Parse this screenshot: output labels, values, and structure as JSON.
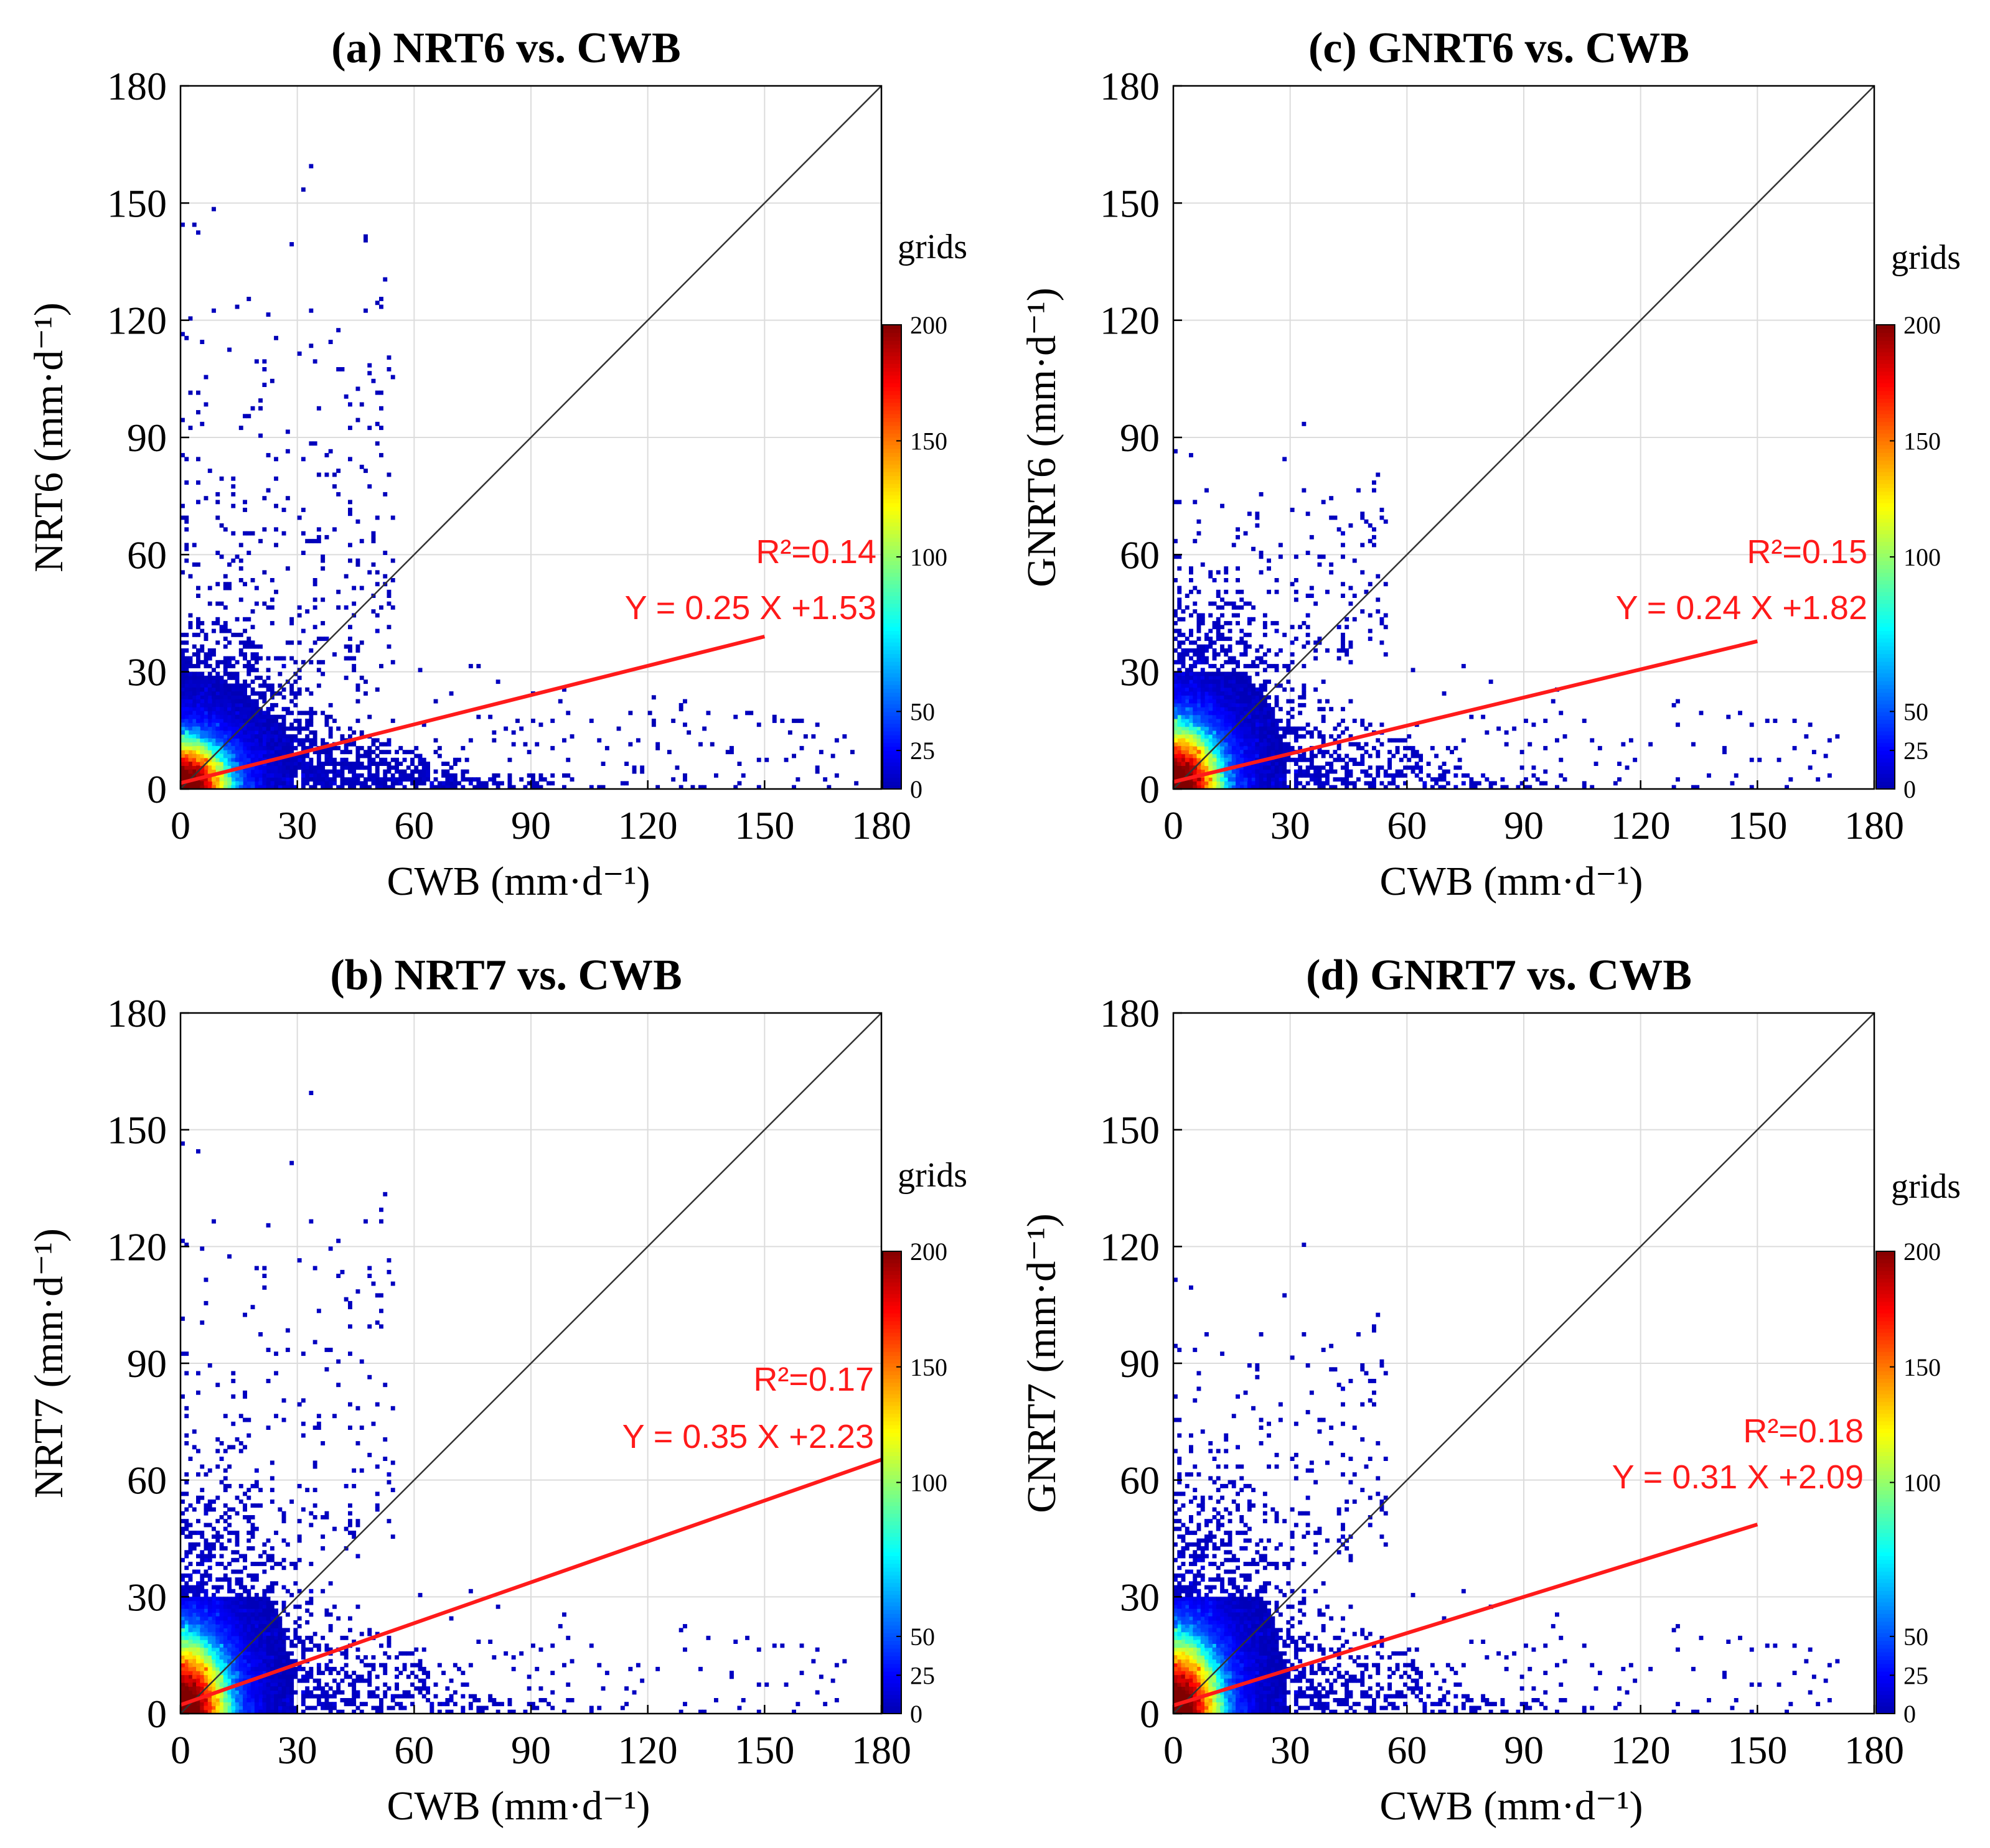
{
  "chart_data": [
    {
      "type": "heatmap",
      "panel": "a",
      "title": "(a) NRT6 vs. CWB",
      "xlabel": "CWB (mm·d⁻¹)",
      "ylabel": "NRT6 (mm·d⁻¹)",
      "xlim": [
        0,
        180
      ],
      "ylim": [
        0,
        180
      ],
      "xticks": [
        0,
        30,
        60,
        90,
        120,
        150,
        180
      ],
      "yticks": [
        0,
        30,
        60,
        90,
        120,
        150,
        180
      ],
      "grid": true,
      "one_to_one_line": true,
      "fit": {
        "slope": 0.25,
        "intercept": 1.53,
        "x_range": [
          0,
          150
        ]
      },
      "r2_label": "R²=0.14",
      "equation_label": "Y = 0.25 X +1.53",
      "colorbar": {
        "title": "grids",
        "ticks": [
          0,
          25,
          50,
          100,
          150,
          200
        ],
        "range": [
          0,
          200
        ]
      },
      "spread": {
        "ymax_core": 35,
        "ymax_scatter": 172,
        "xmax_scatter": 178
      }
    },
    {
      "type": "heatmap",
      "panel": "c",
      "title": "(c) GNRT6 vs. CWB",
      "xlabel": "CWB (mm·d⁻¹)",
      "ylabel": "GNRT6 (mm·d⁻¹)",
      "xlim": [
        0,
        180
      ],
      "ylim": [
        0,
        180
      ],
      "xticks": [
        0,
        30,
        60,
        90,
        120,
        150,
        180
      ],
      "yticks": [
        0,
        30,
        60,
        90,
        120,
        150,
        180
      ],
      "grid": true,
      "one_to_one_line": true,
      "fit": {
        "slope": 0.24,
        "intercept": 1.82,
        "x_range": [
          0,
          150
        ]
      },
      "r2_label": "R²=0.15",
      "equation_label": "Y = 0.24 X +1.82",
      "colorbar": {
        "title": "grids",
        "ticks": [
          0,
          25,
          50,
          100,
          150,
          200
        ],
        "range": [
          0,
          200
        ]
      },
      "spread": {
        "ymax_core": 45,
        "ymax_scatter": 108,
        "xmax_scatter": 178
      }
    },
    {
      "type": "heatmap",
      "panel": "b",
      "title": "(b) NRT7 vs. CWB",
      "xlabel": "CWB (mm·d⁻¹)",
      "ylabel": "NRT7 (mm·d⁻¹)",
      "xlim": [
        0,
        180
      ],
      "ylim": [
        0,
        180
      ],
      "xticks": [
        0,
        30,
        60,
        90,
        120,
        150,
        180
      ],
      "yticks": [
        0,
        30,
        60,
        90,
        120,
        150,
        180
      ],
      "grid": true,
      "one_to_one_line": true,
      "fit": {
        "slope": 0.35,
        "intercept": 2.23,
        "x_range": [
          0,
          180
        ]
      },
      "r2_label": "R²=0.17",
      "equation_label": "Y = 0.35 X +2.23",
      "colorbar": {
        "title": "grids",
        "ticks": [
          0,
          25,
          50,
          100,
          150,
          200
        ],
        "range": [
          0,
          200
        ]
      },
      "spread": {
        "ymax_core": 55,
        "ymax_scatter": 178,
        "xmax_scatter": 178
      }
    },
    {
      "type": "heatmap",
      "panel": "d",
      "title": "(d) GNRT7 vs. CWB",
      "xlabel": "CWB (mm·d⁻¹)",
      "ylabel": "GNRT7 (mm·d⁻¹)",
      "xlim": [
        0,
        180
      ],
      "ylim": [
        0,
        180
      ],
      "xticks": [
        0,
        30,
        60,
        90,
        120,
        150,
        180
      ],
      "yticks": [
        0,
        30,
        60,
        90,
        120,
        150,
        180
      ],
      "grid": true,
      "one_to_one_line": true,
      "fit": {
        "slope": 0.31,
        "intercept": 2.09,
        "x_range": [
          0,
          150
        ]
      },
      "r2_label": "R²=0.18",
      "equation_label": "Y = 0.31 X +2.09",
      "colorbar": {
        "title": "grids",
        "ticks": [
          0,
          25,
          50,
          100,
          150,
          200
        ],
        "range": [
          0,
          200
        ]
      },
      "spread": {
        "ymax_core": 55,
        "ymax_scatter": 138,
        "xmax_scatter": 178
      }
    }
  ]
}
